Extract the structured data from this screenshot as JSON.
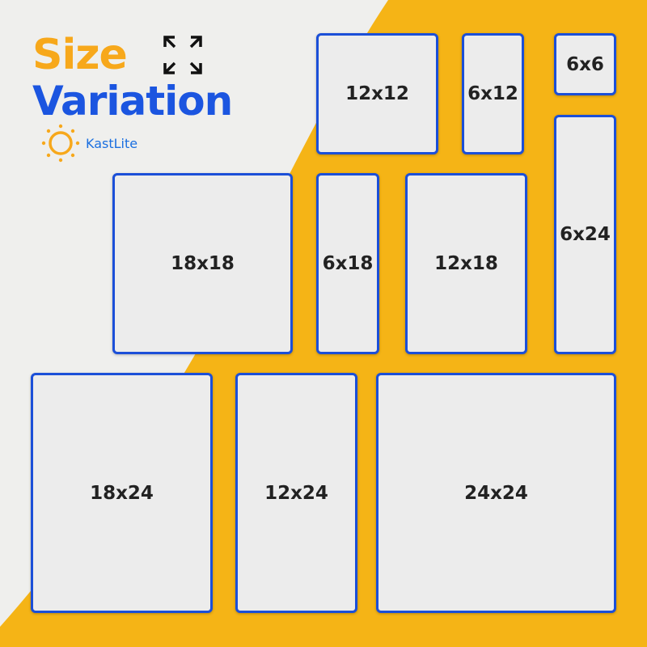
{
  "title": {
    "line1": "Size",
    "line2": "Variation"
  },
  "brand": {
    "name": "KastLite"
  },
  "colors": {
    "accent_yellow": "#f7b215",
    "accent_blue": "#1b55e0",
    "tile_border": "#1b4fd8",
    "tile_fill": "#ececec"
  },
  "icons": {
    "expand": "expand-arrows-icon",
    "logo": "sun-icon"
  },
  "tiles": [
    {
      "label": "12x12"
    },
    {
      "label": "6x12"
    },
    {
      "label": "6x6"
    },
    {
      "label": "6x24"
    },
    {
      "label": "18x18"
    },
    {
      "label": "6x18"
    },
    {
      "label": "12x18"
    },
    {
      "label": "18x24"
    },
    {
      "label": "12x24"
    },
    {
      "label": "24x24"
    }
  ]
}
